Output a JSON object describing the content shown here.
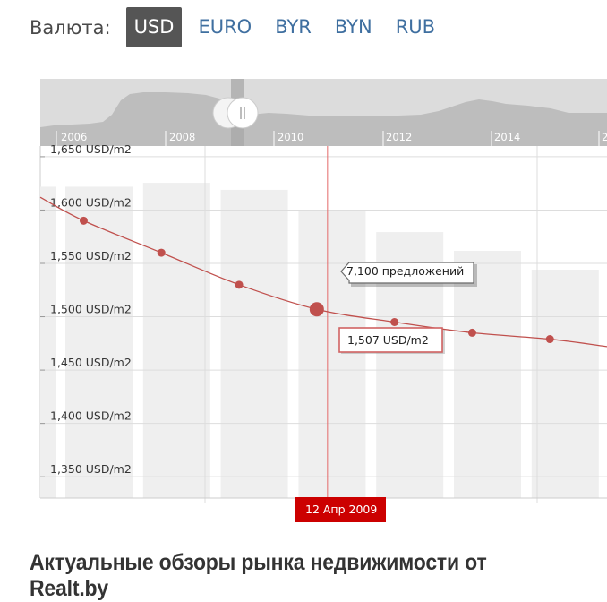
{
  "currency": {
    "label": "Валюта:",
    "options": [
      "USD",
      "EURO",
      "BYR",
      "BYN",
      "RUB"
    ],
    "selected": "USD"
  },
  "navigator": {
    "years": [
      "2006",
      "2008",
      "2010",
      "2012",
      "2014",
      "2"
    ],
    "handle_icon": "grip-lines-icon"
  },
  "chart_data": {
    "type": "line",
    "y_tick_labels": [
      "1,650 USD/m2",
      "1,600 USD/m2",
      "1,550 USD/m2",
      "1,500 USD/m2",
      "1,450 USD/m2",
      "1,400 USD/m2",
      "1,350 USD/m2"
    ],
    "ylim": [
      1330,
      1660
    ],
    "y_ticks": [
      1650,
      1600,
      1550,
      1500,
      1450,
      1400,
      1350
    ],
    "price_series": {
      "unit": "USD/m2",
      "points": [
        {
          "t": 0.0,
          "v": 1612
        },
        {
          "t": 0.8,
          "v": 1590
        },
        {
          "t": 1.8,
          "v": 1560
        },
        {
          "t": 2.8,
          "v": 1530
        },
        {
          "t": 3.8,
          "v": 1507
        },
        {
          "t": 4.8,
          "v": 1495
        },
        {
          "t": 5.8,
          "v": 1485
        },
        {
          "t": 6.8,
          "v": 1479
        },
        {
          "t": 7.3,
          "v": 1472
        }
      ]
    },
    "offers_series": {
      "bars": [
        1278,
        1283,
        1274,
        1247,
        1220,
        1196,
        1172,
        1149
      ]
    },
    "offers_ylim": [
      880,
      1330
    ],
    "crosshair": {
      "date": "12 Апр 2009",
      "price_label": "1,507 USD/m2",
      "offers_label": "7,100 предложений"
    },
    "colors": {
      "line": "#c0504d",
      "bars": "#efefef",
      "date_bg": "#cc0000"
    }
  },
  "footer": {
    "title": "Актуальные обзоры рынка недвижимости от Realt.by"
  }
}
